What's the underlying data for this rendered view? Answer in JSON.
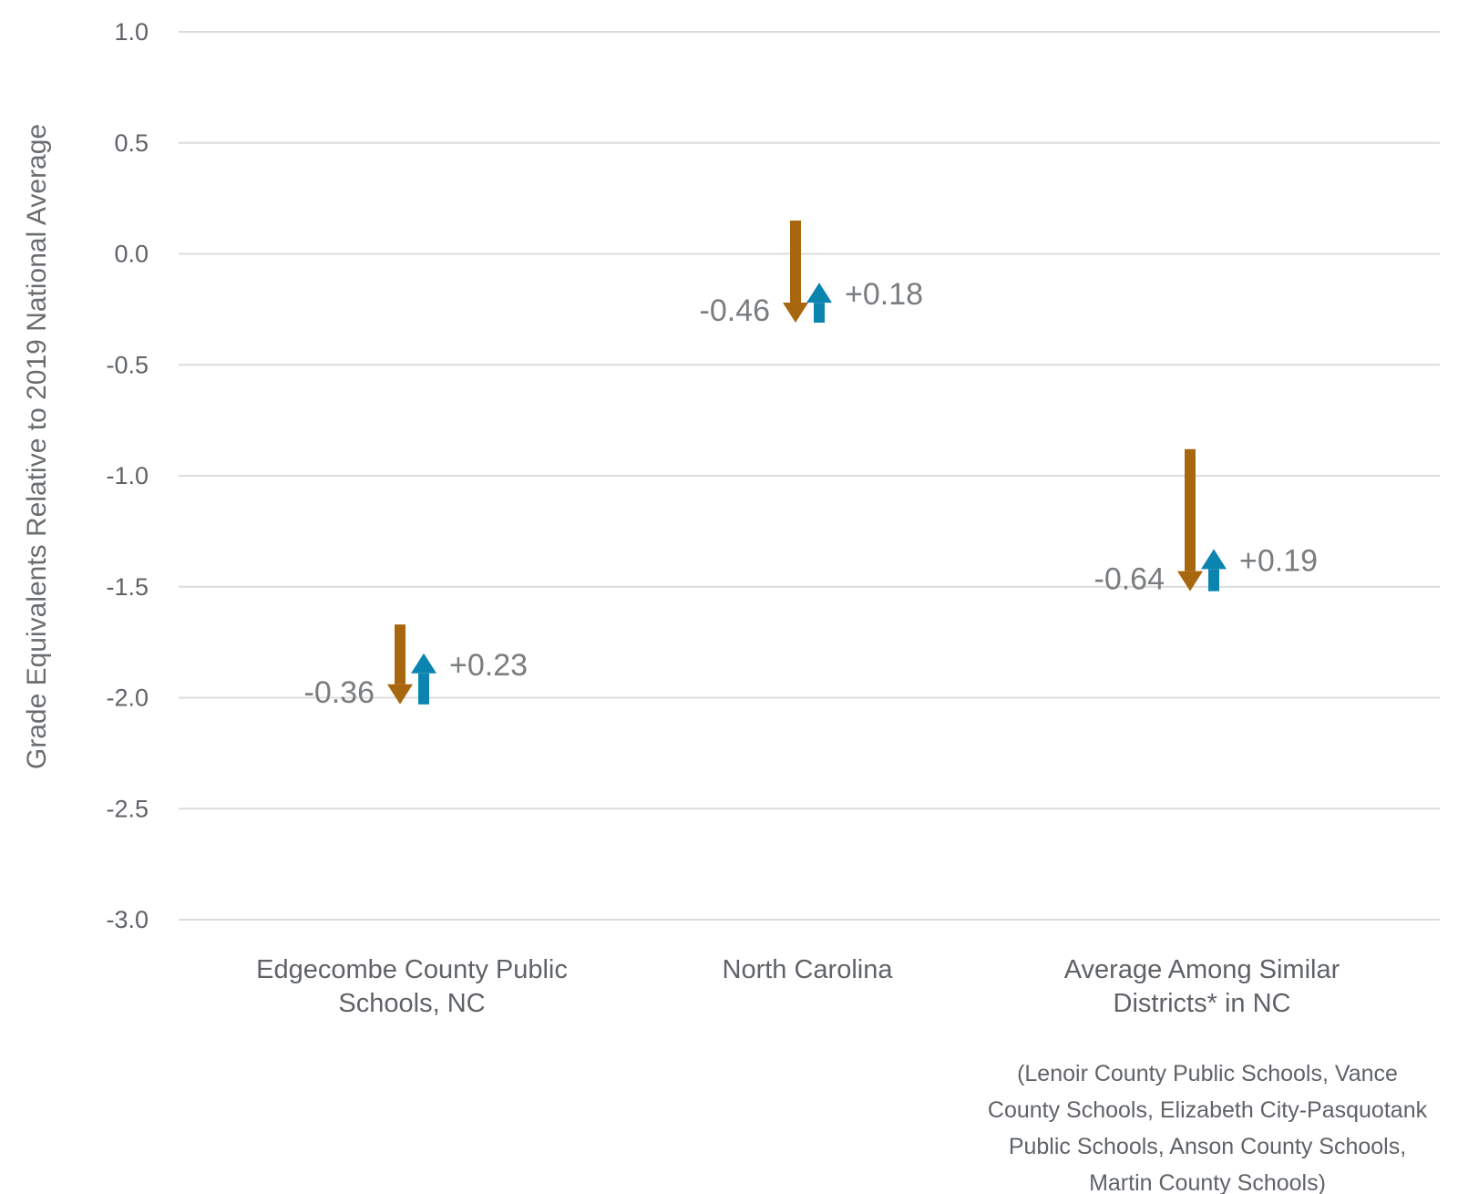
{
  "chart_data": {
    "type": "arrow",
    "ylabel": "Grade Equivalents Relative to 2019 National Average",
    "ylim": [
      -3.0,
      1.0
    ],
    "yticks": [
      "1.0",
      "0.5",
      "0.0",
      "-0.5",
      "-1.0",
      "-1.5",
      "-2.0",
      "-2.5",
      "-3.0"
    ],
    "grid": true,
    "colors": {
      "decline": "#a8670f",
      "recovery": "#0b85b0"
    },
    "categories": [
      {
        "label_lines": [
          "Edgecombe County Public",
          "Schools, NC"
        ],
        "start": -1.67,
        "decline": -0.36,
        "recovery": 0.23,
        "decline_label": "-0.36",
        "recovery_label": "+0.23"
      },
      {
        "label_lines": [
          "North Carolina"
        ],
        "start": 0.15,
        "decline": -0.46,
        "recovery": 0.18,
        "decline_label": "-0.46",
        "recovery_label": "+0.18"
      },
      {
        "label_lines": [
          "Average Among Similar",
          "Districts* in NC"
        ],
        "start": -0.88,
        "decline": -0.64,
        "recovery": 0.19,
        "decline_label": "-0.64",
        "recovery_label": "+0.19"
      }
    ],
    "note_lines": [
      "(Lenoir County Public Schools, Vance",
      "County Schools, Elizabeth City-Pasquotank",
      "Public Schools, Anson County Schools,",
      "Martin County Schools)"
    ]
  }
}
